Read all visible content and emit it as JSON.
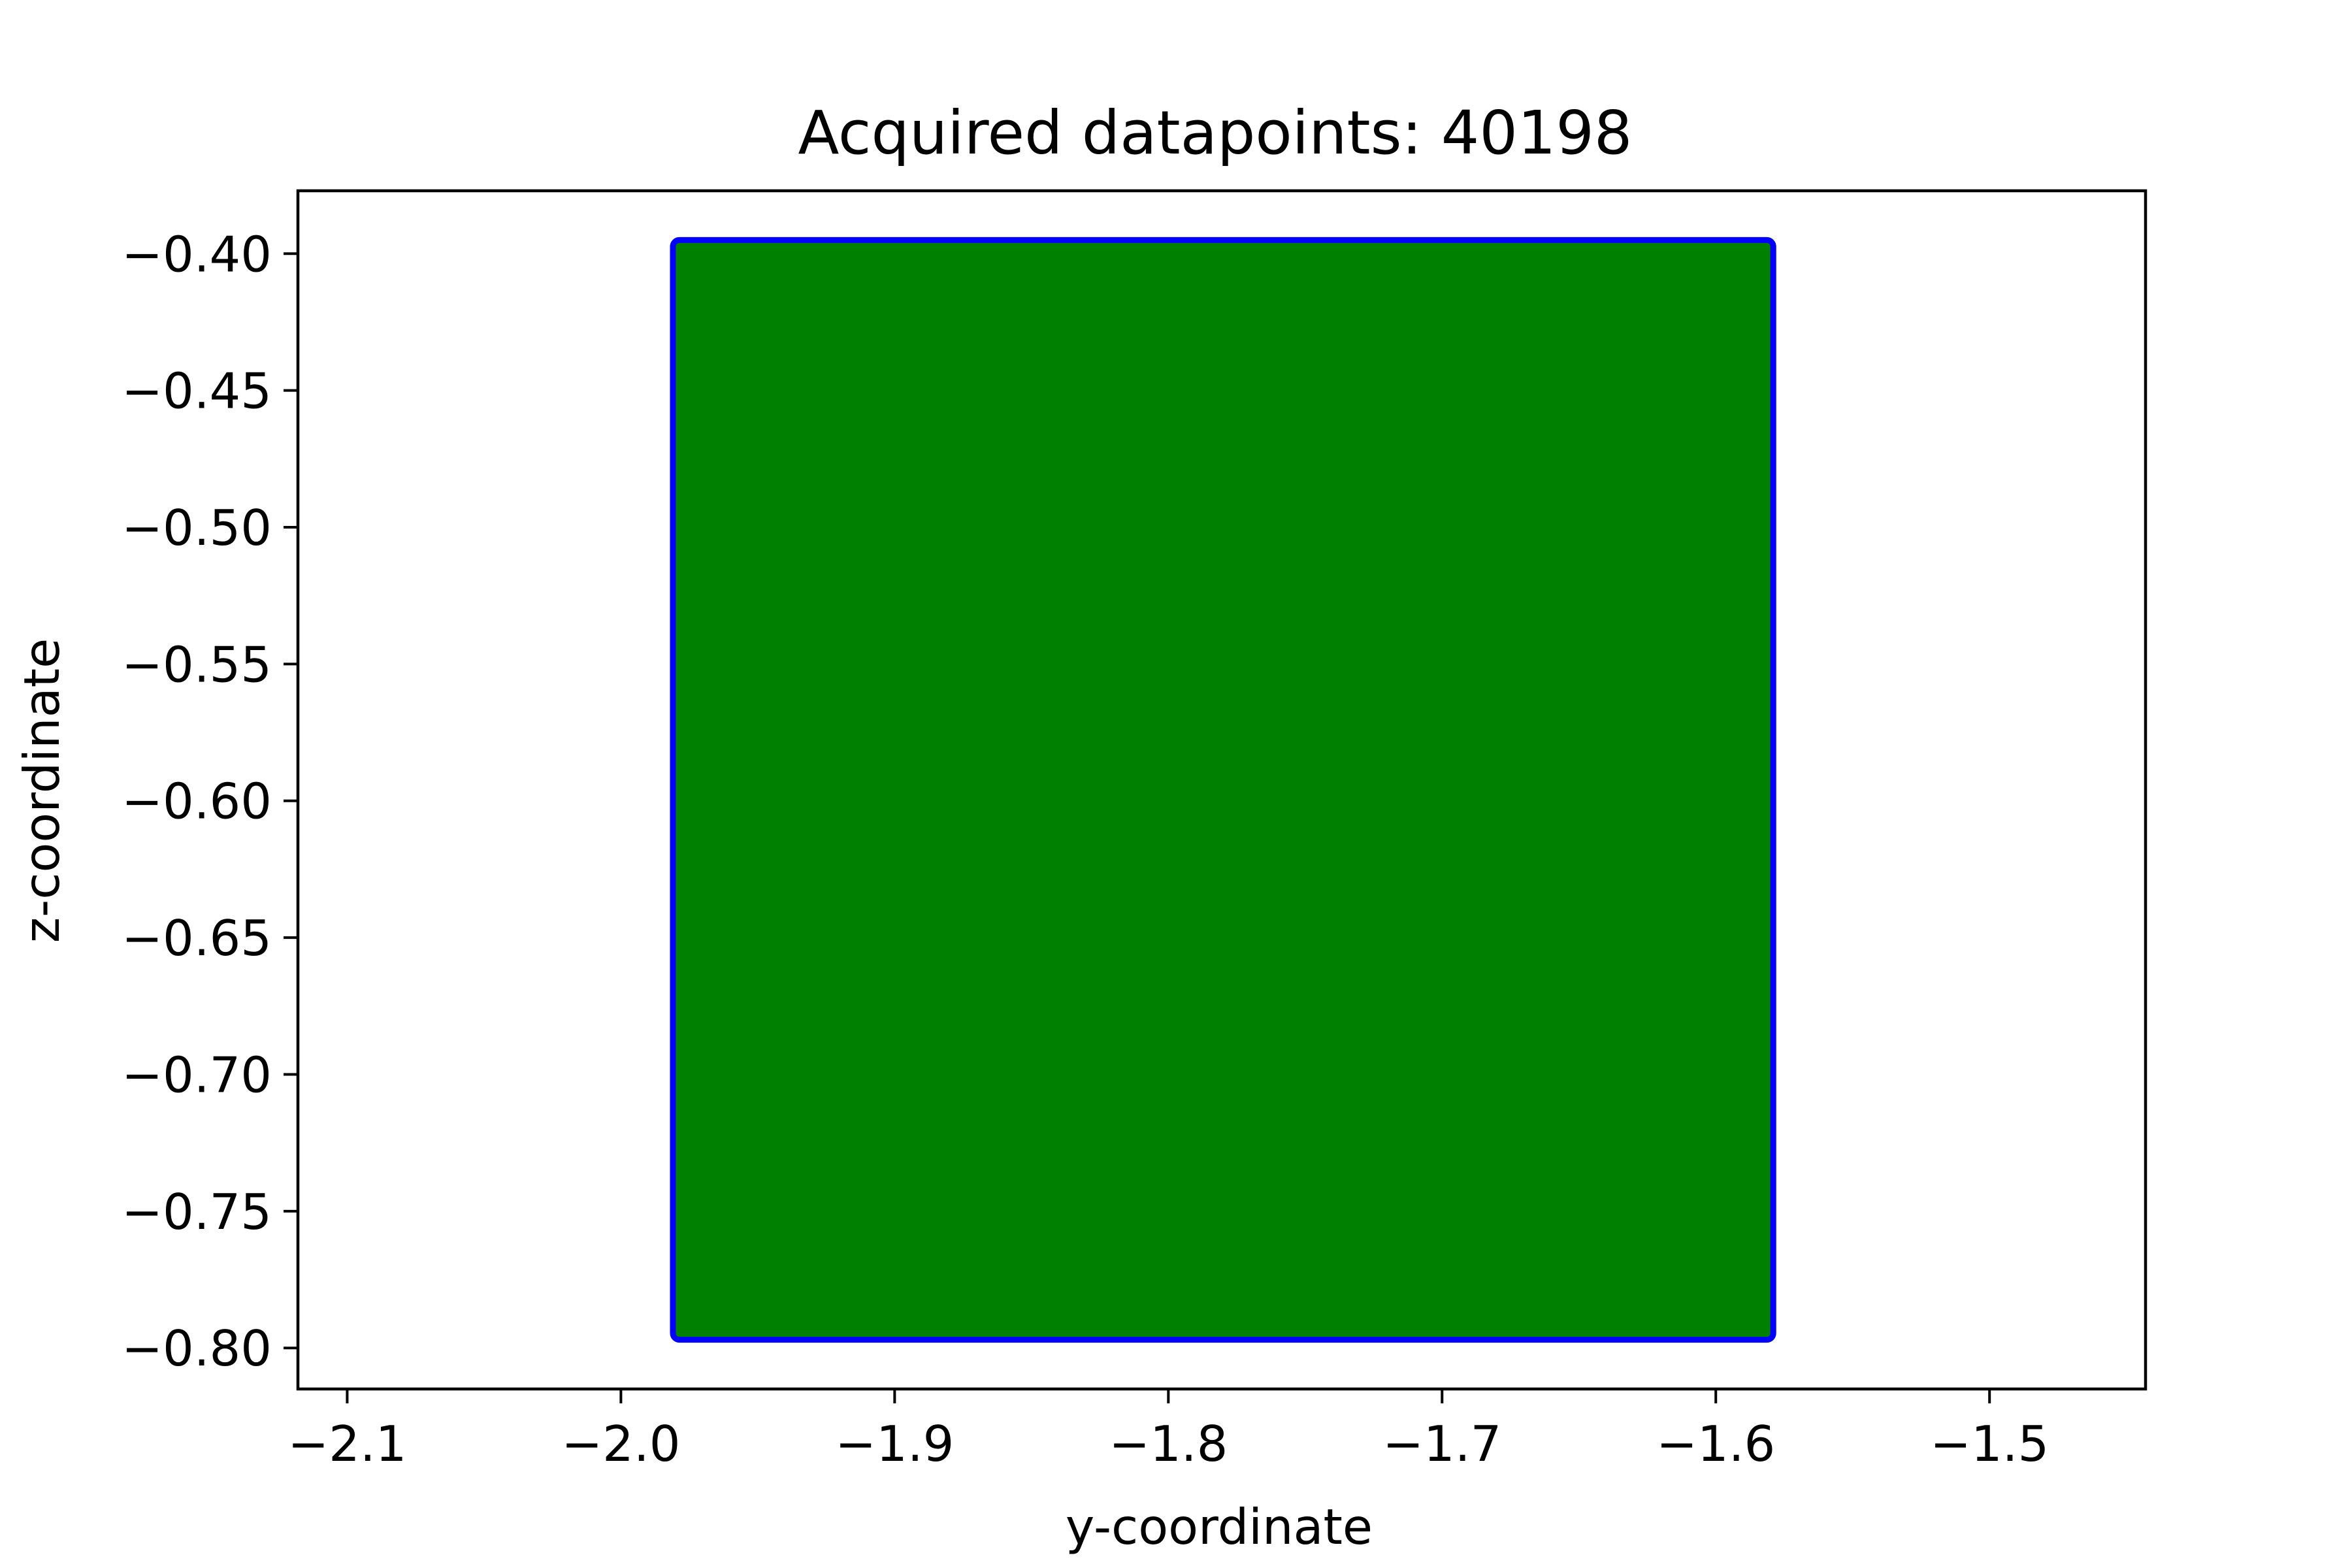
{
  "chart_data": {
    "type": "scatter",
    "title": "Acquired datapoints: 40198",
    "xlabel": "y-coordinate",
    "ylabel": "z-coordinate",
    "xlim": [
      -2.118,
      -1.443
    ],
    "ylim": [
      -0.815,
      -0.377
    ],
    "x_ticks": [
      {
        "value": -2.1,
        "label": "−2.1"
      },
      {
        "value": -2.0,
        "label": "−2.0"
      },
      {
        "value": -1.9,
        "label": "−1.9"
      },
      {
        "value": -1.8,
        "label": "−1.8"
      },
      {
        "value": -1.7,
        "label": "−1.7"
      },
      {
        "value": -1.6,
        "label": "−1.6"
      },
      {
        "value": -1.5,
        "label": "−1.5"
      }
    ],
    "y_ticks": [
      {
        "value": -0.4,
        "label": "−0.40"
      },
      {
        "value": -0.45,
        "label": "−0.45"
      },
      {
        "value": -0.5,
        "label": "−0.50"
      },
      {
        "value": -0.55,
        "label": "−0.55"
      },
      {
        "value": -0.6,
        "label": "−0.60"
      },
      {
        "value": -0.65,
        "label": "−0.65"
      },
      {
        "value": -0.7,
        "label": "−0.70"
      },
      {
        "value": -0.75,
        "label": "−0.75"
      },
      {
        "value": -0.8,
        "label": "−0.80"
      }
    ],
    "grid": false,
    "legend": "none",
    "series": [
      {
        "role": "interior",
        "color": "#008000",
        "extent": {
          "x": [
            -1.98,
            -1.58
          ],
          "y": [
            -0.796,
            -0.396
          ]
        }
      },
      {
        "role": "boundary",
        "color": "#0000ff",
        "extent": {
          "x": [
            -1.981,
            -1.579
          ],
          "y": [
            -0.797,
            -0.395
          ]
        }
      }
    ]
  }
}
